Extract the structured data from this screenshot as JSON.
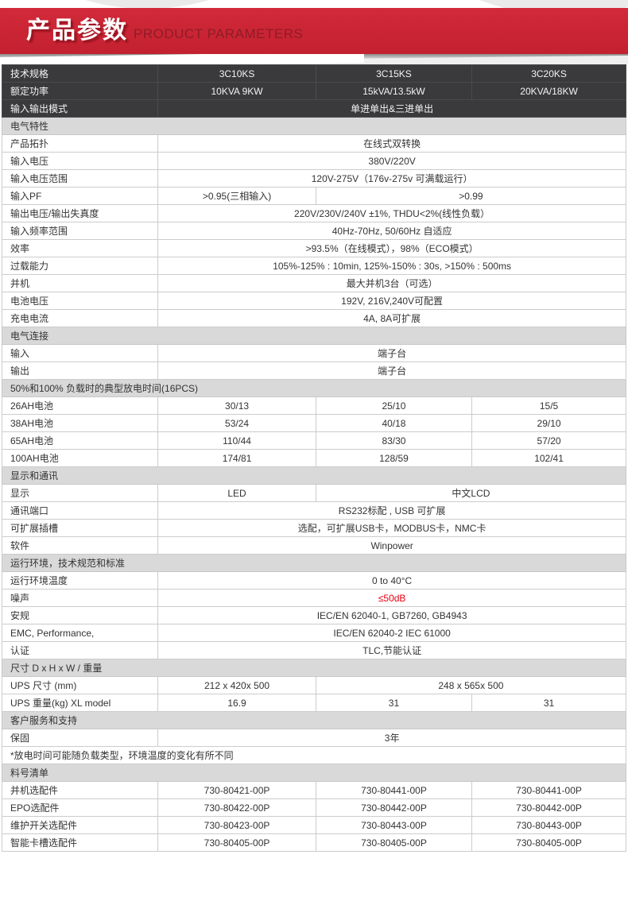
{
  "banner": {
    "title_cn": "产品参数",
    "title_en": "PRODUCT PARAMETERS",
    "bg_color": "#c92433",
    "title_en_color": "#8e1c28"
  },
  "colors": {
    "dark_row_bg": "#3a3a3c",
    "section_row_bg": "#d9d9d9",
    "table_border": "#cccccc",
    "highlight_red": "#e60012"
  },
  "table": {
    "rows": [
      {
        "type": "dark",
        "cells": [
          {
            "t": "技术规格"
          },
          {
            "t": "3C10KS"
          },
          {
            "t": "3C15KS"
          },
          {
            "t": "3C20KS"
          }
        ]
      },
      {
        "type": "dark",
        "cells": [
          {
            "t": "额定功率"
          },
          {
            "t": "10KVA 9KW"
          },
          {
            "t": "15kVA/13.5kW"
          },
          {
            "t": "20KVA/18KW"
          }
        ]
      },
      {
        "type": "dark",
        "cells": [
          {
            "t": "输入输出模式"
          },
          {
            "t": "单进单出&三进单出",
            "span": 3
          }
        ]
      },
      {
        "type": "section",
        "cells": [
          {
            "t": "电气特性",
            "span": 4
          }
        ]
      },
      {
        "type": "data",
        "cells": [
          {
            "t": "产品拓扑"
          },
          {
            "t": "在线式双转换",
            "span": 3
          }
        ]
      },
      {
        "type": "data",
        "cells": [
          {
            "t": "输入电压"
          },
          {
            "t": "380V/220V",
            "span": 3
          }
        ]
      },
      {
        "type": "data",
        "cells": [
          {
            "t": "输入电压范围"
          },
          {
            "t": "120V-275V（176v-275v 可满载运行）",
            "span": 3
          }
        ]
      },
      {
        "type": "data",
        "cells": [
          {
            "t": "输入PF"
          },
          {
            "t": ">0.95(三相输入)"
          },
          {
            "t": ">0.99",
            "span": 2
          }
        ]
      },
      {
        "type": "data",
        "cells": [
          {
            "t": "输出电压/输出失真度"
          },
          {
            "t": "220V/230V/240V ±1%, THDU<2%(线性负载）",
            "span": 3
          }
        ]
      },
      {
        "type": "data",
        "cells": [
          {
            "t": "输入频率范围"
          },
          {
            "t": "40Hz-70Hz, 50/60Hz 自适应",
            "span": 3
          }
        ]
      },
      {
        "type": "data",
        "cells": [
          {
            "t": "效率"
          },
          {
            "t": ">93.5%（在线模式），98%（ECO模式）",
            "span": 3
          }
        ]
      },
      {
        "type": "data",
        "cells": [
          {
            "t": "过载能力"
          },
          {
            "t": "105%-125% : 10min, 125%-150% : 30s, >150% : 500ms",
            "span": 3
          }
        ]
      },
      {
        "type": "data",
        "cells": [
          {
            "t": "并机"
          },
          {
            "t": "最大并机3台（可选）",
            "span": 3
          }
        ]
      },
      {
        "type": "data",
        "cells": [
          {
            "t": "电池电压"
          },
          {
            "t": "192V, 216V,240V可配置",
            "span": 3
          }
        ]
      },
      {
        "type": "data",
        "cells": [
          {
            "t": "充电电流"
          },
          {
            "t": "4A, 8A可扩展",
            "span": 3
          }
        ]
      },
      {
        "type": "section",
        "cells": [
          {
            "t": "电气连接",
            "span": 4
          }
        ]
      },
      {
        "type": "data",
        "cells": [
          {
            "t": "输入"
          },
          {
            "t": "端子台",
            "span": 3
          }
        ]
      },
      {
        "type": "data",
        "cells": [
          {
            "t": "输出"
          },
          {
            "t": "端子台",
            "span": 3
          }
        ]
      },
      {
        "type": "section",
        "cells": [
          {
            "t": "50%和100% 负载时的典型放电时间(16PCS)",
            "span": 4
          }
        ]
      },
      {
        "type": "data",
        "cells": [
          {
            "t": "26AH电池"
          },
          {
            "t": "30/13"
          },
          {
            "t": "25/10"
          },
          {
            "t": "15/5"
          }
        ]
      },
      {
        "type": "data",
        "cells": [
          {
            "t": "38AH电池"
          },
          {
            "t": "53/24"
          },
          {
            "t": "40/18"
          },
          {
            "t": "29/10"
          }
        ]
      },
      {
        "type": "data",
        "cells": [
          {
            "t": "65AH电池"
          },
          {
            "t": "110/44"
          },
          {
            "t": "83/30"
          },
          {
            "t": "57/20"
          }
        ]
      },
      {
        "type": "data",
        "cells": [
          {
            "t": "100AH电池"
          },
          {
            "t": "174/81"
          },
          {
            "t": "128/59"
          },
          {
            "t": "102/41"
          }
        ]
      },
      {
        "type": "section",
        "cells": [
          {
            "t": "显示和通讯",
            "span": 4
          }
        ]
      },
      {
        "type": "data",
        "cells": [
          {
            "t": "显示"
          },
          {
            "t": "LED"
          },
          {
            "t": "中文LCD",
            "span": 2
          }
        ]
      },
      {
        "type": "data",
        "cells": [
          {
            "t": "通讯端口"
          },
          {
            "t": "RS232标配 , USB 可扩展",
            "span": 3
          }
        ]
      },
      {
        "type": "data",
        "cells": [
          {
            "t": "可扩展插槽"
          },
          {
            "t": "选配，可扩展USB卡，MODBUS卡，NMC卡",
            "span": 3
          }
        ]
      },
      {
        "type": "data",
        "cells": [
          {
            "t": "软件"
          },
          {
            "t": "Winpower",
            "span": 3
          }
        ]
      },
      {
        "type": "section",
        "cells": [
          {
            "t": "运行环境，技术规范和标准",
            "span": 4
          }
        ]
      },
      {
        "type": "data",
        "cells": [
          {
            "t": "运行环境温度"
          },
          {
            "t": "0 to 40°C",
            "span": 3
          }
        ]
      },
      {
        "type": "data",
        "cells": [
          {
            "t": "噪声"
          },
          {
            "t": "≤50dB",
            "span": 3,
            "color": "#e60012"
          }
        ]
      },
      {
        "type": "data",
        "cells": [
          {
            "t": "安规"
          },
          {
            "t": "IEC/EN 62040-1, GB7260, GB4943",
            "span": 3
          }
        ]
      },
      {
        "type": "data",
        "cells": [
          {
            "t": "EMC, Performance,"
          },
          {
            "t": "IEC/EN 62040-2  IEC 61000",
            "span": 3
          }
        ]
      },
      {
        "type": "data",
        "cells": [
          {
            "t": "认证"
          },
          {
            "t": "TLC,节能认证",
            "span": 3
          }
        ]
      },
      {
        "type": "section",
        "cells": [
          {
            "t": "尺寸 D x H x W / 重量",
            "span": 4
          }
        ]
      },
      {
        "type": "data",
        "cells": [
          {
            "t": "UPS 尺寸 (mm)"
          },
          {
            "t": "212 x 420x 500"
          },
          {
            "t": "248 x 565x 500",
            "span": 2
          }
        ]
      },
      {
        "type": "data",
        "cells": [
          {
            "t": "UPS 重量(kg) XL model"
          },
          {
            "t": "16.9"
          },
          {
            "t": "31"
          },
          {
            "t": "31"
          }
        ]
      },
      {
        "type": "section",
        "cells": [
          {
            "t": "客户服务和支持",
            "span": 4
          }
        ]
      },
      {
        "type": "data",
        "cells": [
          {
            "t": "保固"
          },
          {
            "t": "3年",
            "span": 3
          }
        ]
      },
      {
        "type": "note",
        "cells": [
          {
            "t": "*放电时间可能随负载类型，环境温度的变化有所不同",
            "span": 4
          }
        ]
      },
      {
        "type": "section",
        "cells": [
          {
            "t": "料号清单",
            "span": 4
          }
        ]
      },
      {
        "type": "data",
        "cells": [
          {
            "t": "并机选配件"
          },
          {
            "t": "730-80421-00P"
          },
          {
            "t": "730-80441-00P"
          },
          {
            "t": "730-80441-00P"
          }
        ]
      },
      {
        "type": "data",
        "cells": [
          {
            "t": "EPO选配件"
          },
          {
            "t": "730-80422-00P"
          },
          {
            "t": "730-80442-00P"
          },
          {
            "t": "730-80442-00P"
          }
        ]
      },
      {
        "type": "data",
        "cells": [
          {
            "t": "维护开关选配件"
          },
          {
            "t": "730-80423-00P"
          },
          {
            "t": "730-80443-00P"
          },
          {
            "t": "730-80443-00P"
          }
        ]
      },
      {
        "type": "data",
        "cells": [
          {
            "t": "智能卡槽选配件"
          },
          {
            "t": "730-80405-00P"
          },
          {
            "t": "730-80405-00P"
          },
          {
            "t": "730-80405-00P"
          }
        ]
      }
    ]
  }
}
